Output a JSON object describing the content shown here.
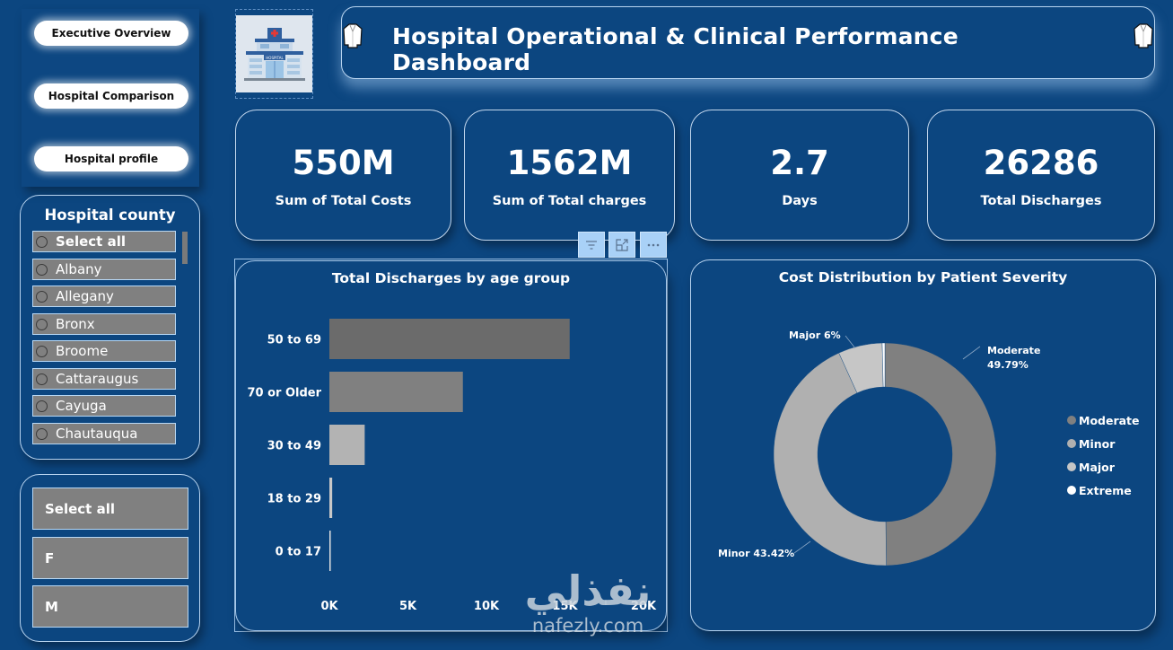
{
  "nav": {
    "buttons": [
      {
        "label": "Executive Overview"
      },
      {
        "label": "Hospital Comparison"
      },
      {
        "label": "Hospital profile"
      }
    ]
  },
  "logo": {
    "icon": "hospital-building-icon",
    "sign_text": "HOSPITAL"
  },
  "header": {
    "title": "Hospital Operational & Clinical Performance Dashboard",
    "left_icon": "lab-coat-icon",
    "right_icon": "lab-coat-icon"
  },
  "kpis": [
    {
      "value": "550M",
      "label": "Sum of Total Costs"
    },
    {
      "value": "1562M",
      "label": "Sum of Total charges"
    },
    {
      "value": "2.7",
      "label": "Days"
    },
    {
      "value": "26286",
      "label": "Total Discharges"
    }
  ],
  "county_slicer": {
    "title": "Hospital county",
    "items": [
      {
        "label": "Select all",
        "selected": false
      },
      {
        "label": "Albany",
        "selected": false
      },
      {
        "label": "Allegany",
        "selected": false
      },
      {
        "label": "Bronx",
        "selected": false
      },
      {
        "label": "Broome",
        "selected": false
      },
      {
        "label": "Cattaraugus",
        "selected": false
      },
      {
        "label": "Cayuga",
        "selected": false
      },
      {
        "label": "Chautauqua",
        "selected": false
      }
    ]
  },
  "gender_slicer": {
    "items": [
      {
        "label": "Select all"
      },
      {
        "label": "F"
      },
      {
        "label": "M"
      }
    ]
  },
  "visual_toolbar": {
    "buttons": [
      {
        "icon": "filter-icon"
      },
      {
        "icon": "focus-mode-icon"
      },
      {
        "icon": "more-options-icon"
      }
    ]
  },
  "colors": {
    "background": "#0c4680",
    "card_border": "#b8d4f0",
    "slicer_item": "#808080",
    "bar_colors": [
      "#6b6b6b",
      "#808080",
      "#b3b3b3",
      "#c8c8c8",
      "#e0e0e0"
    ],
    "donut_colors": [
      "#808080",
      "#b0b0b0",
      "#c6c6c6",
      "#ffffff"
    ]
  },
  "chart_data": [
    {
      "type": "bar",
      "orientation": "horizontal",
      "title": "Total Discharges by age group",
      "categories": [
        "50 to 69",
        "70 or Older",
        "30 to 49",
        "18 to 29",
        "0 to 17"
      ],
      "values": [
        15300,
        8500,
        2250,
        180,
        56
      ],
      "xlabel": "",
      "ylabel": "",
      "xlim": [
        0,
        20000
      ],
      "x_ticks": [
        0,
        5000,
        10000,
        15000,
        20000
      ],
      "x_tick_labels": [
        "0K",
        "5K",
        "10K",
        "15K",
        "20K"
      ],
      "grid": false
    },
    {
      "type": "pie",
      "variant": "donut",
      "title": "Cost Distribution by Patient Severity",
      "categories": [
        "Moderate",
        "Minor",
        "Major",
        "Extreme"
      ],
      "values": [
        49.79,
        43.42,
        6.4,
        0.39
      ],
      "data_labels": [
        {
          "category": "Moderate",
          "text_line1": "Moderate",
          "text_line2": "49.79%"
        },
        {
          "category": "Minor",
          "text_line1": "Minor 43.42%"
        },
        {
          "category": "Major",
          "text_line1": "Major 6%"
        }
      ],
      "legend": {
        "position": "right",
        "entries": [
          "Moderate",
          "Minor",
          "Major",
          "Extreme"
        ]
      }
    }
  ],
  "watermark": {
    "arabic": "نفذلي",
    "latin": "nafezly.com"
  }
}
